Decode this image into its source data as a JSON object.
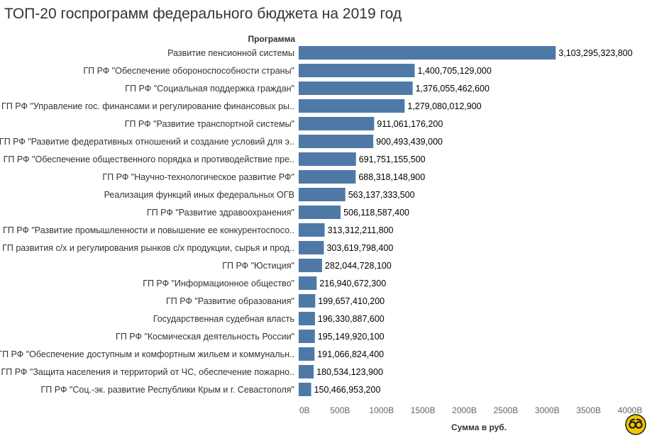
{
  "title": "ТОП-20 госпрограмм федерального бюджета на 2019 год",
  "chart_data": {
    "type": "bar",
    "orientation": "horizontal",
    "title": "ТОП-20 госпрограмм федерального бюджета на 2019 год",
    "category_header": "Программа",
    "xlabel": "Сумма в руб.",
    "xlim": [
      0,
      4000000000000
    ],
    "xticks": [
      0,
      500000000000,
      1000000000000,
      1500000000000,
      2000000000000,
      2500000000000,
      3000000000000,
      3500000000000,
      4000000000000
    ],
    "xtick_labels": [
      "0B",
      "500B",
      "1000B",
      "1500B",
      "2000B",
      "2500B",
      "3000B",
      "3500B",
      "4000B"
    ],
    "bar_color": "#4e79a7",
    "grid": false,
    "categories": [
      "Развитие пенсионной системы",
      "ГП РФ \"Обеспечение обороноспособности страны\"",
      "ГП РФ \"Социальная поддержка граждан\"",
      "ГП РФ \"Управление гос. финансами и регулирование финансовых ры..",
      "ГП РФ \"Развитие транспортной системы\"",
      "ГП РФ \"Развитие федеративных отношений и создание условий для э..",
      "ГП РФ \"Обеспечение общественного порядка и противодействие пре..",
      "ГП РФ \"Научно-технологическое развитие РФ\"",
      "Реализация функций иных федеральных ОГВ",
      "ГП РФ \"Развитие здравоохранения\"",
      "ГП РФ \"Развитие промышленности и повышение ее конкурентоспосо..",
      "ГП развития с/х и регулирования рынков с/х продукции, сырья и прод..",
      "ГП РФ \"Юстиция\"",
      "ГП РФ \"Информационное общество\"",
      "ГП РФ \"Развитие образования\"",
      "Государственная судебная власть",
      "ГП РФ \"Космическая деятельность России\"",
      "ГП РФ \"Обеспечение доступным и комфортным жильем и коммунальн..",
      "ГП РФ \"Защита населения и территорий от ЧС, обеспечение пожарно..",
      "ГП РФ \"Соц.-эк. развитие Республики Крым и г. Севастополя\""
    ],
    "values": [
      3103295323800,
      1400705129000,
      1376055462600,
      1279080012900,
      911061176200,
      900493439000,
      691751155500,
      688318148900,
      563137333500,
      506118587400,
      313312211800,
      303619798400,
      282044728100,
      216940672300,
      199657410200,
      196330887600,
      195149920100,
      191066824400,
      180534123900,
      150466953200
    ],
    "value_labels": [
      "3,103,295,323,800",
      "1,400,705,129,000",
      "1,376,055,462,600",
      "1,279,080,012,900",
      "911,061,176,200",
      "900,493,439,000",
      "691,751,155,500",
      "688,318,148,900",
      "563,137,333,500",
      "506,118,587,400",
      "313,312,211,800",
      "303,619,798,400",
      "282,044,728,100",
      "216,940,672,300",
      "199,657,410,200",
      "196,330,887,600",
      "195,149,920,100",
      "191,066,824,400",
      "180,534,123,900",
      "150,466,953,200"
    ]
  }
}
